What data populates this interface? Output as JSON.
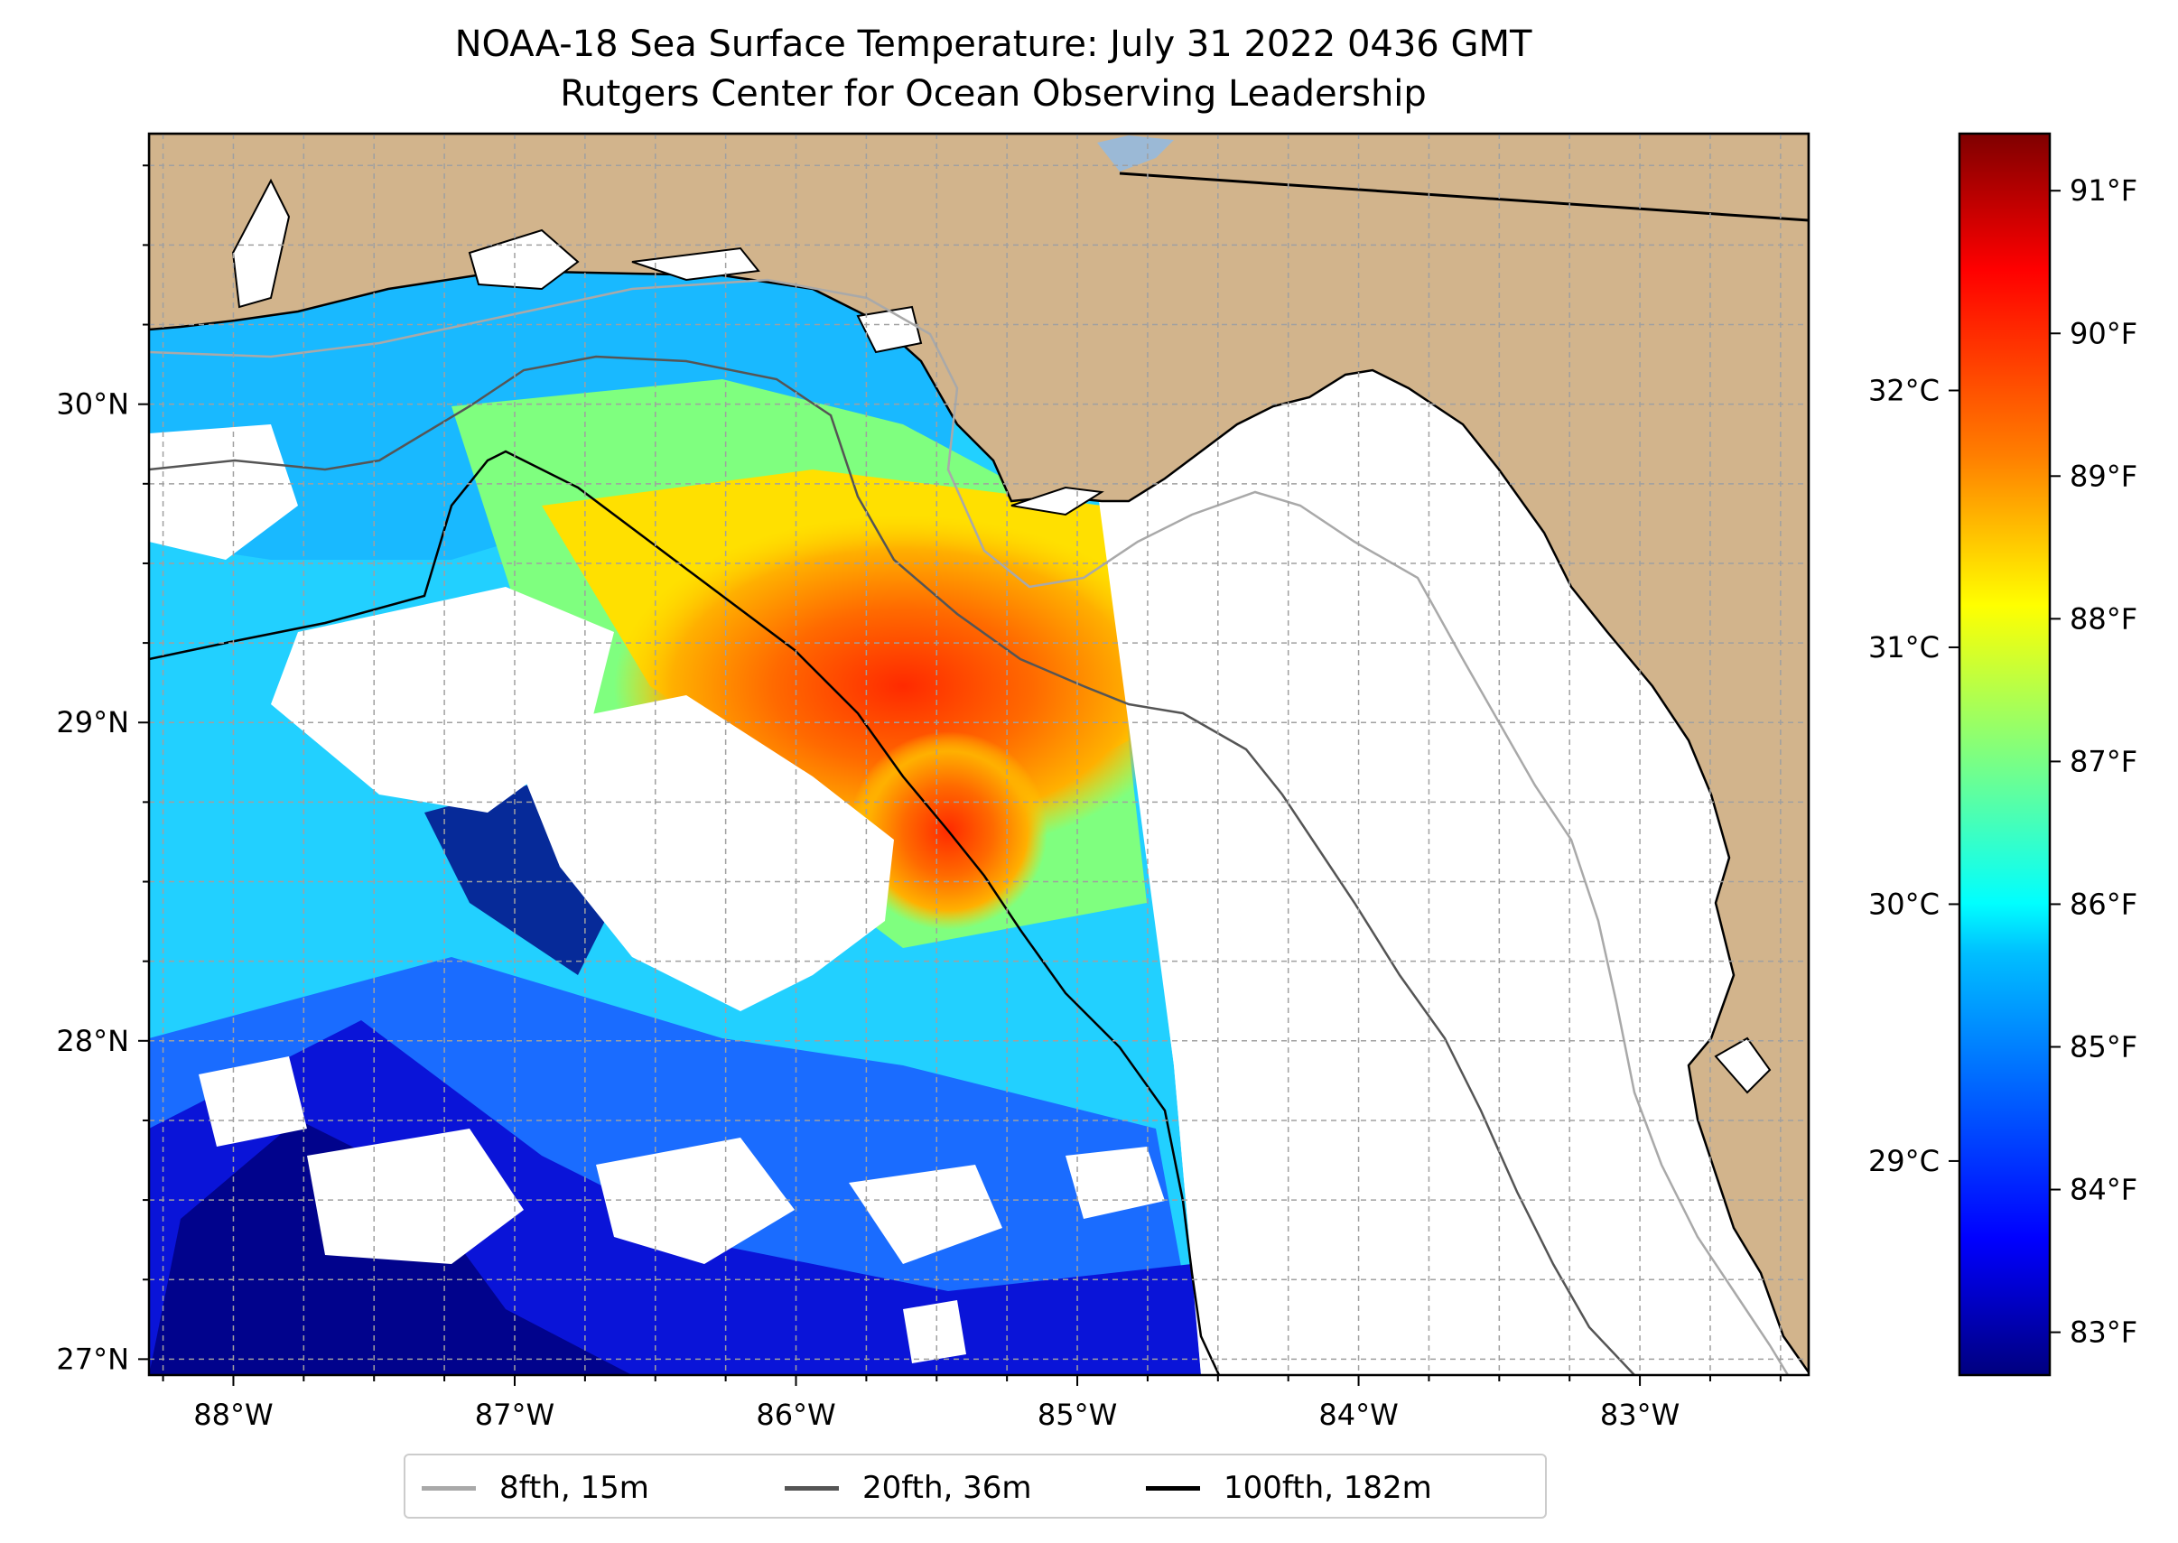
{
  "title": {
    "line1": "NOAA-18 Sea Surface Temperature: July 31 2022 0436 GMT",
    "line2": "Rutgers Center for Ocean Observing Leadership"
  },
  "colors": {
    "land": "#d2b48c",
    "coast": "#000000",
    "grid": "#b0b0b0",
    "isobath_15m": "#a9a9a9",
    "isobath_36m": "#555555",
    "isobath_182m": "#000000",
    "colormap": [
      "#00007f",
      "#0000ff",
      "#007fff",
      "#00ffff",
      "#7fff7f",
      "#ffff00",
      "#ff7f00",
      "#ff0000",
      "#7f0000"
    ]
  },
  "map_data": {
    "extent": {
      "lon": [
        -88.3,
        -82.4
      ],
      "lat": [
        26.95,
        30.85
      ]
    },
    "lon_ticks": [
      "88°W",
      "87°W",
      "86°W",
      "85°W",
      "84°W",
      "83°W"
    ],
    "lat_ticks": [
      "27°N",
      "28°N",
      "29°N",
      "30°N"
    ],
    "gridlines": true,
    "legend_placement": "bottom-center",
    "legend": [
      {
        "label": "8fth, 15m",
        "color": "#a9a9a9"
      },
      {
        "label": "20fth, 36m",
        "color": "#555555"
      },
      {
        "label": "100fth, 182m",
        "color": "#000000"
      }
    ]
  },
  "colorbar": {
    "fahrenheit_ticks": [
      "83°F",
      "84°F",
      "85°F",
      "86°F",
      "87°F",
      "88°F",
      "89°F",
      "90°F",
      "91°F"
    ],
    "celsius_ticks": [
      "29°C",
      "30°C",
      "31°C",
      "32°C"
    ],
    "range_f": [
      82.7,
      91.4
    ]
  }
}
